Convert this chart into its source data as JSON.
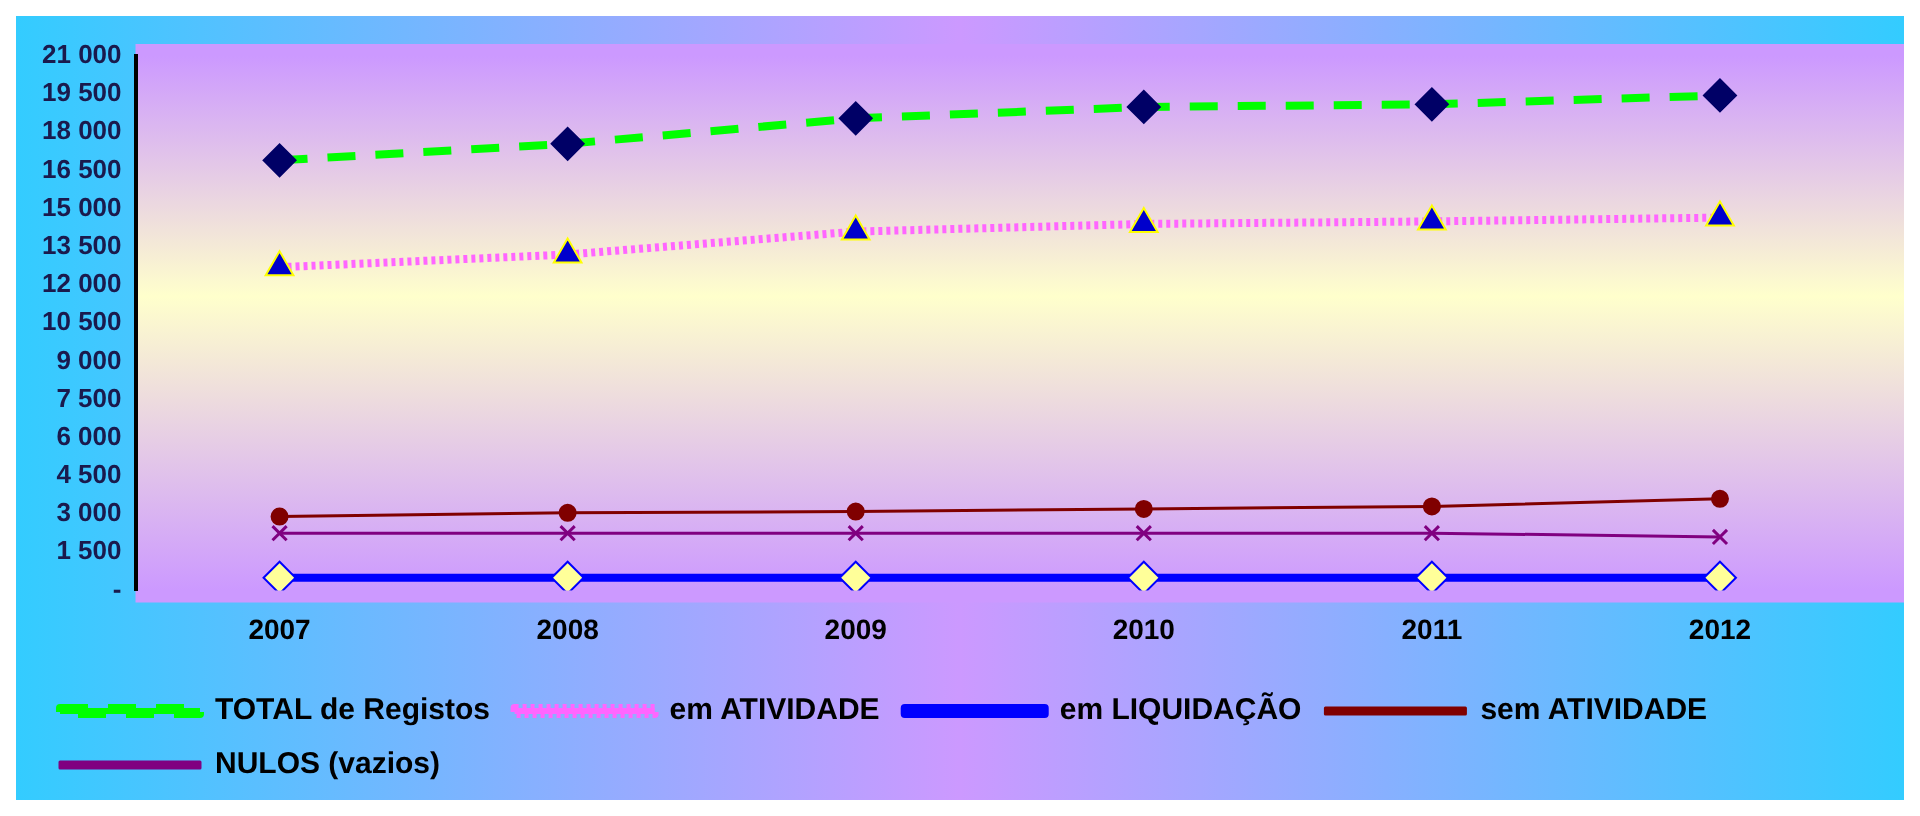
{
  "chart_data": {
    "type": "line",
    "categories": [
      "2007",
      "2008",
      "2009",
      "2010",
      "2011",
      "2012"
    ],
    "series": [
      {
        "name": "TOTAL de Registos",
        "color": "#00ff00",
        "marker": "diamond",
        "line_style": "dashed",
        "values": [
          16900,
          17550,
          18550,
          19000,
          19100,
          19450
        ]
      },
      {
        "name": "em ATIVIDADE",
        "color": "#ff66ff",
        "marker": "triangle",
        "line_style": "dotted",
        "values": [
          12700,
          13200,
          14100,
          14400,
          14500,
          14650
        ]
      },
      {
        "name": "em LIQUIDAÇÃO",
        "color": "#0000ff",
        "marker": "diamond",
        "line_style": "solid",
        "values": [
          500,
          500,
          500,
          500,
          500,
          500
        ]
      },
      {
        "name": "sem ATIVIDADE",
        "color": "#800000",
        "marker": "circle",
        "line_style": "solid",
        "values": [
          2900,
          3050,
          3100,
          3200,
          3300,
          3600
        ]
      },
      {
        "name": "NULOS (vazios)",
        "color": "#800080",
        "marker": "cross",
        "line_style": "solid",
        "values": [
          2250,
          2250,
          2250,
          2250,
          2250,
          2100
        ]
      }
    ],
    "ylim": [
      0,
      21000
    ],
    "yticks": [
      {
        "value": 0,
        "label": "-"
      },
      {
        "value": 1500,
        "label": "1 500"
      },
      {
        "value": 3000,
        "label": "3 000"
      },
      {
        "value": 4500,
        "label": "4 500"
      },
      {
        "value": 6000,
        "label": "6 000"
      },
      {
        "value": 7500,
        "label": "7 500"
      },
      {
        "value": 9000,
        "label": "9 000"
      },
      {
        "value": 10500,
        "label": "10 500"
      },
      {
        "value": 12000,
        "label": "12 000"
      },
      {
        "value": 13500,
        "label": "13 500"
      },
      {
        "value": 15000,
        "label": "15 000"
      },
      {
        "value": 16500,
        "label": "16 500"
      },
      {
        "value": 18000,
        "label": "18 000"
      },
      {
        "value": 19500,
        "label": "19 500"
      },
      {
        "value": 21000,
        "label": "21 000"
      }
    ],
    "grid": false,
    "legend": "bottom"
  }
}
